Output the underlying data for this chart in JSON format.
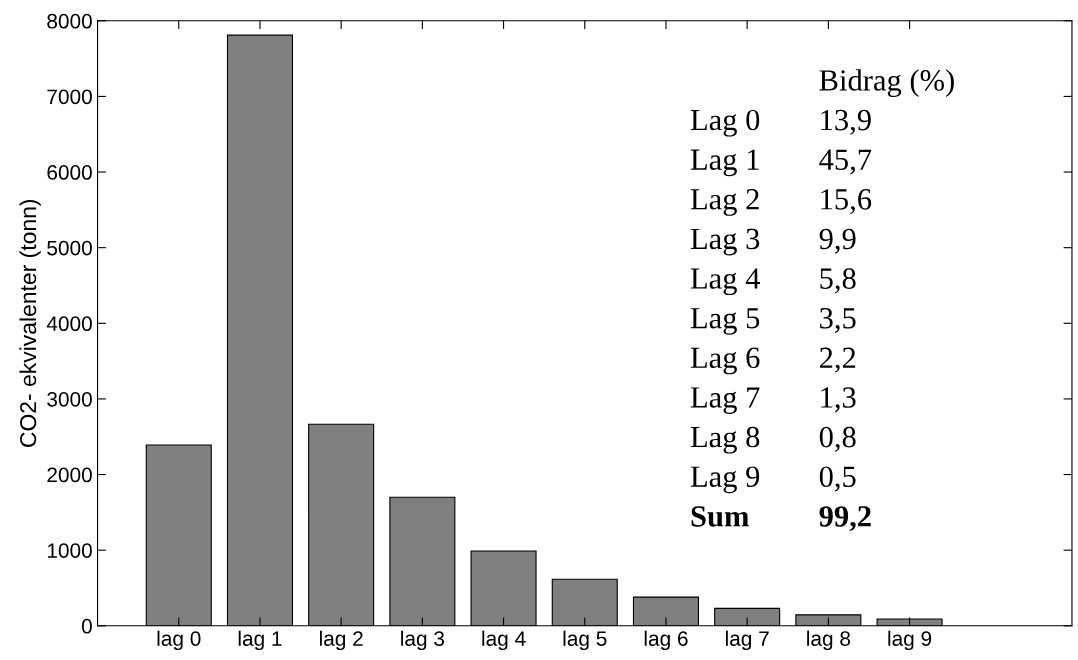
{
  "chart_data": {
    "type": "bar",
    "ylabel": "CO2- ekvivalenter (tonn)",
    "categories": [
      "lag 0",
      "lag 1",
      "lag 2",
      "lag 3",
      "lag 4",
      "lag 5",
      "lag 6",
      "lag 7",
      "lag 8",
      "lag 9"
    ],
    "values": [
      2390,
      7810,
      2665,
      1700,
      990,
      615,
      380,
      230,
      145,
      90
    ],
    "color": "#808080",
    "ylim": [
      0,
      8000
    ],
    "yticks": [
      0,
      1000,
      2000,
      3000,
      4000,
      5000,
      6000,
      7000,
      8000
    ],
    "grid": false,
    "annotations": [
      "Bidrag (%)",
      "Lag 0",
      "13,9",
      "Lag 1",
      "45,7",
      "Lag 2",
      "15,6",
      "Lag 3",
      "9,9",
      "Lag 4",
      "5,8",
      "Lag 5",
      "3,5",
      "Lag 6",
      "2,2",
      "Lag 7",
      "1,3",
      "Lag 8",
      "0,8",
      "Lag 9",
      "0,5",
      "Sum",
      "99,2"
    ]
  }
}
